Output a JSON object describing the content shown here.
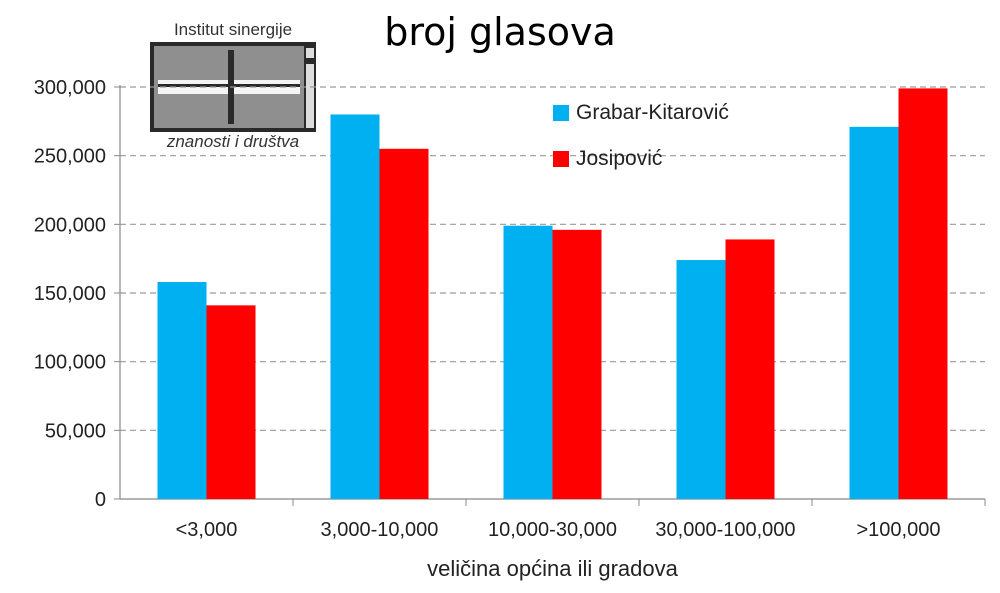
{
  "logo": {
    "top_text": "Institut sinergije",
    "bottom_text": "znanosti i društva"
  },
  "chart_data": {
    "type": "bar",
    "title": "broj glasova",
    "xlabel": "veličina općina ili  gradova",
    "ylabel": "",
    "ylim": [
      0,
      300000
    ],
    "yticks": [
      "0",
      "50,000",
      "100,000",
      "150,000",
      "200,000",
      "250,000",
      "300,000"
    ],
    "categories": [
      "<3,000",
      "3,000-10,000",
      "10,000-30,000",
      "30,000-100,000",
      ">100,000"
    ],
    "series": [
      {
        "name": "Grabar-Kitarović",
        "color": "#00b0f0",
        "values": [
          158000,
          280000,
          199000,
          174000,
          271000
        ]
      },
      {
        "name": "Josipović",
        "color": "#ff0000",
        "values": [
          141000,
          255000,
          196000,
          189000,
          299000
        ]
      }
    ],
    "grid": true,
    "legend_position": "top-right"
  }
}
